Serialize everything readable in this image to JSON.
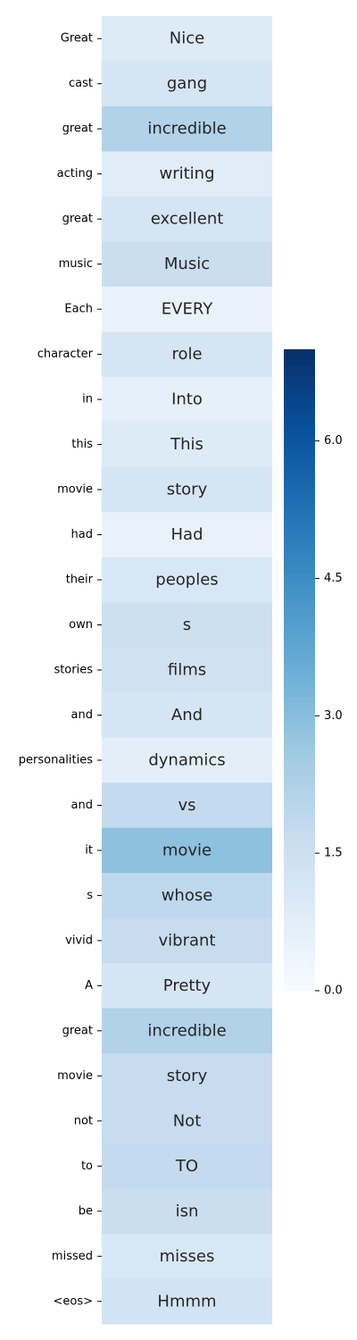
{
  "chart_data": {
    "type": "heatmap",
    "rows": [
      "Great",
      "cast",
      "great",
      "acting",
      "great",
      "music",
      "Each",
      "character",
      "in",
      "this",
      "movie",
      "had",
      "their",
      "own",
      "stories",
      "and",
      "personalities",
      "and",
      "it",
      "s",
      "vivid",
      "A",
      "great",
      "movie",
      "not",
      "to",
      "be",
      "missed",
      "<eos>"
    ],
    "cell_labels": [
      "Nice",
      "gang",
      "incredible",
      "writing",
      "excellent",
      "Music",
      "EVERY",
      "role",
      "Into",
      "This",
      "story",
      "Had",
      "peoples",
      "s",
      "films",
      "And",
      "dynamics",
      "vs",
      "movie",
      "whose",
      "vibrant",
      "Pretty",
      "incredible",
      "story",
      "Not",
      "TO",
      "isn",
      "misses",
      "Hmmm"
    ],
    "values": [
      0.9,
      1.2,
      2.2,
      0.8,
      1.2,
      1.6,
      0.5,
      1.2,
      0.6,
      0.9,
      1.2,
      0.5,
      1.1,
      1.5,
      1.4,
      1.2,
      0.7,
      1.8,
      2.9,
      1.9,
      1.7,
      1.2,
      2.2,
      1.7,
      1.7,
      1.8,
      1.6,
      1.1,
      1.3
    ],
    "colorbar": {
      "min": 0.0,
      "max": 7.0,
      "ticks": [
        0.0,
        1.5,
        3.0,
        4.5,
        6.0
      ],
      "tick_labels": [
        "0.0",
        "1.5",
        "3.0",
        "4.5",
        "6.0"
      ],
      "colormap": "Blues"
    }
  }
}
